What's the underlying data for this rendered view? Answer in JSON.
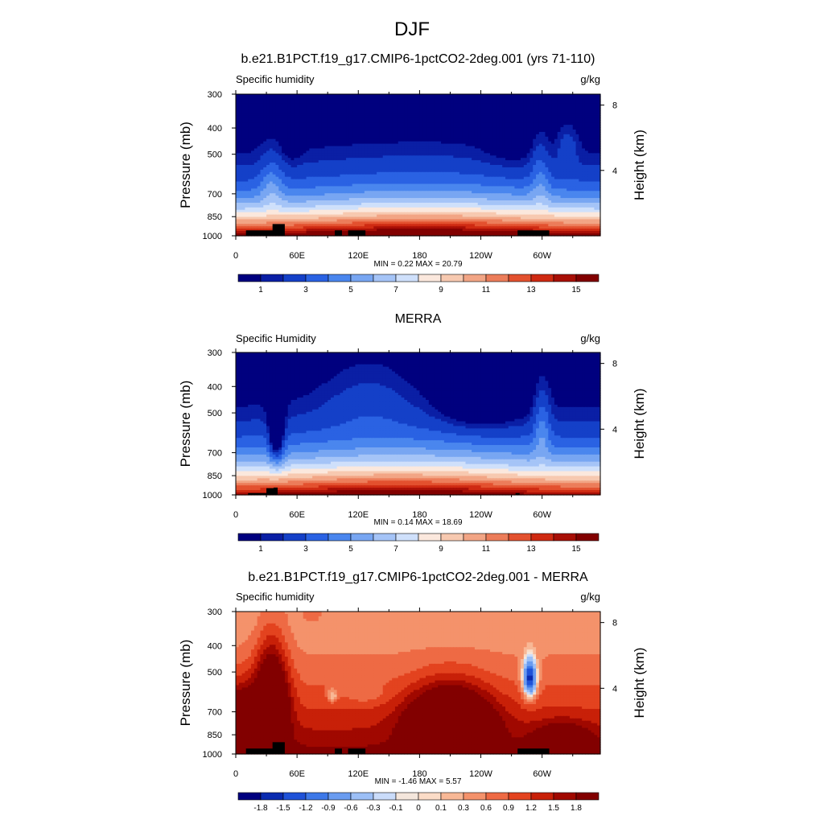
{
  "figure": {
    "title": "DJF"
  },
  "colors": {
    "abs_palette": [
      "#00007f",
      "#0a1fa5",
      "#1440c8",
      "#2a62e3",
      "#4a86ee",
      "#78a6f2",
      "#a5c4f7",
      "#cfe0fb",
      "#fbe8dd",
      "#f7c9b0",
      "#f2a585",
      "#ec7d5a",
      "#e3512f",
      "#cf2a12",
      "#a80f06",
      "#820000"
    ],
    "diff_palette": [
      "#00007f",
      "#0a2bb0",
      "#1f52d8",
      "#3d78e8",
      "#6a9cf0",
      "#9cbff6",
      "#cadcfa",
      "#f4e6dc",
      "#fbdcc7",
      "#f8b896",
      "#f4926b",
      "#ee6a44",
      "#e3431f",
      "#c82008",
      "#a00800",
      "#820000"
    ],
    "terrain": "#000000"
  },
  "chart_data": [
    {
      "type": "heatmap",
      "panel_title": "b.e21.B1PCT.f19_g17.CMIP6-1pctCO2-2deg.001 (yrs 71-110)",
      "left_label": "Specific humidity",
      "units": "g/kg",
      "ylabel": "Pressure (mb)",
      "ylabel_right": "Height (km)",
      "x_ticks": [
        "0",
        "60E",
        "120E",
        "180",
        "120W",
        "60W"
      ],
      "x_tick_values": [
        0,
        60,
        120,
        180,
        240,
        300
      ],
      "xlim": [
        0,
        357
      ],
      "y_ticks": [
        "300",
        "400",
        "500",
        "700",
        "850",
        "1000"
      ],
      "y_tick_values": [
        300,
        400,
        500,
        700,
        850,
        1000
      ],
      "ylim": [
        1000,
        300
      ],
      "height_ticks": [
        "8",
        "4"
      ],
      "height_tick_values": [
        8,
        4
      ],
      "stats": "MIN =   0.22  MAX =  20.79",
      "colorbar_labels": [
        "1",
        "3",
        "5",
        "7",
        "9",
        "11",
        "13",
        "15"
      ],
      "levels": [
        0.5,
        1,
        2,
        3,
        4,
        5,
        6,
        7,
        8,
        9,
        10,
        11,
        12,
        13,
        14,
        15
      ],
      "field": "abs_model",
      "min": 0.22,
      "max": 20.79
    },
    {
      "type": "heatmap",
      "panel_title": "MERRA",
      "left_label": "Specific Humidity",
      "units": "g/kg",
      "ylabel": "Pressure (mb)",
      "ylabel_right": "Height (km)",
      "x_ticks": [
        "0",
        "60E",
        "120E",
        "180",
        "120W",
        "60W"
      ],
      "x_tick_values": [
        0,
        60,
        120,
        180,
        240,
        300
      ],
      "xlim": [
        0,
        357
      ],
      "y_ticks": [
        "300",
        "400",
        "500",
        "700",
        "850",
        "1000"
      ],
      "y_tick_values": [
        300,
        400,
        500,
        700,
        850,
        1000
      ],
      "ylim": [
        1000,
        300
      ],
      "height_ticks": [
        "8",
        "4"
      ],
      "height_tick_values": [
        8,
        4
      ],
      "stats": "MIN =   0.14  MAX =  18.69",
      "colorbar_labels": [
        "1",
        "3",
        "5",
        "7",
        "9",
        "11",
        "13",
        "15"
      ],
      "levels": [
        0.5,
        1,
        2,
        3,
        4,
        5,
        6,
        7,
        8,
        9,
        10,
        11,
        12,
        13,
        14,
        15
      ],
      "field": "abs_obs",
      "min": 0.14,
      "max": 18.69
    },
    {
      "type": "heatmap",
      "panel_title": "b.e21.B1PCT.f19_g17.CMIP6-1pctCO2-2deg.001 - MERRA",
      "left_label": "Specific humidity",
      "units": "g/kg",
      "ylabel": "Pressure (mb)",
      "ylabel_right": "Height (km)",
      "x_ticks": [
        "0",
        "60E",
        "120E",
        "180",
        "120W",
        "60W"
      ],
      "x_tick_values": [
        0,
        60,
        120,
        180,
        240,
        300
      ],
      "xlim": [
        0,
        357
      ],
      "y_ticks": [
        "300",
        "400",
        "500",
        "700",
        "850",
        "1000"
      ],
      "y_tick_values": [
        300,
        400,
        500,
        700,
        850,
        1000
      ],
      "ylim": [
        1000,
        300
      ],
      "height_ticks": [
        "8",
        "4"
      ],
      "height_tick_values": [
        8,
        4
      ],
      "stats": "MIN =  -1.46  MAX =   5.57",
      "colorbar_labels": [
        "-1.8",
        "-1.5",
        "-1.2",
        "-0.9",
        "-0.6",
        "-0.3",
        "-0.1",
        "0",
        "0.1",
        "0.3",
        "0.6",
        "0.9",
        "1.2",
        "1.5",
        "1.8"
      ],
      "levels": [
        -1.8,
        -1.5,
        -1.2,
        -0.9,
        -0.6,
        -0.3,
        -0.1,
        0,
        0.1,
        0.3,
        0.6,
        0.9,
        1.2,
        1.5,
        1.8
      ],
      "field": "diff",
      "min": -1.46,
      "max": 5.57
    }
  ]
}
